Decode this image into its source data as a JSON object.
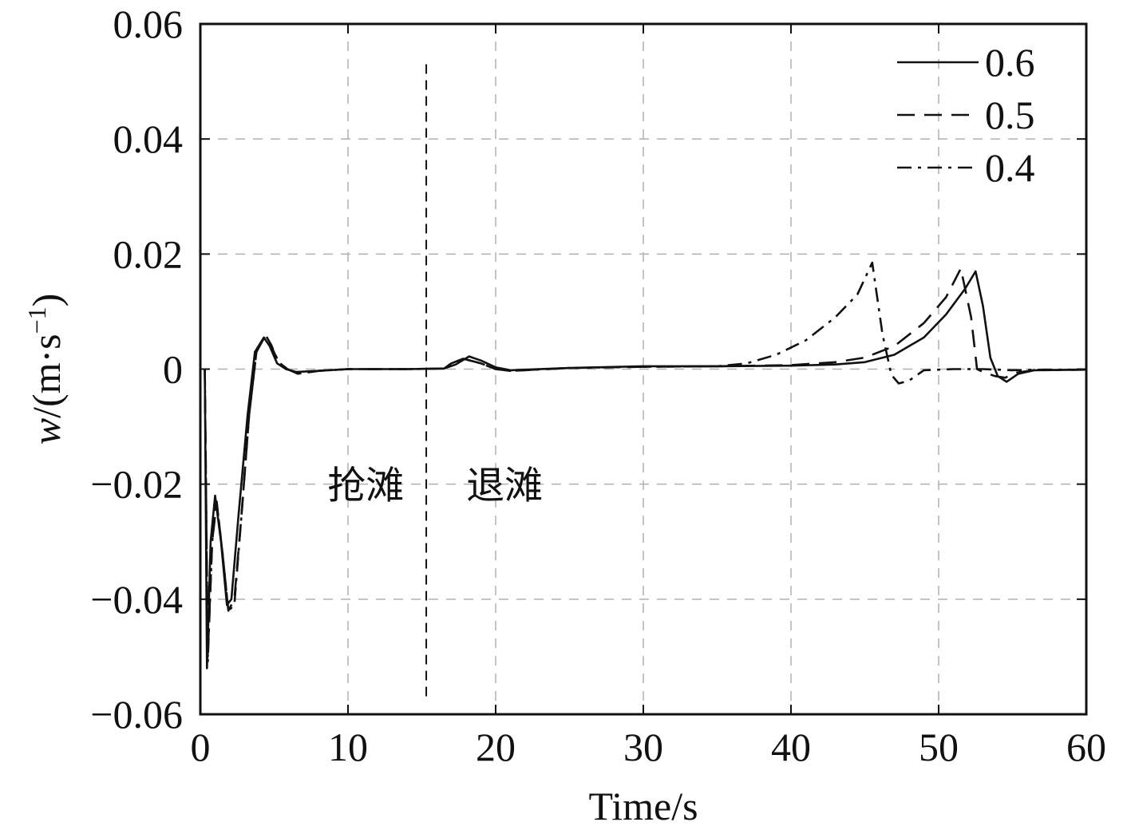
{
  "chart_data": {
    "type": "line",
    "title": "",
    "xlabel": "Time/s",
    "ylabel_var": "w",
    "ylabel_unit": "/(m·s",
    "ylabel_sup": "−1",
    "ylabel_close": ")",
    "xlim": [
      0,
      60
    ],
    "ylim": [
      -0.06,
      0.06
    ],
    "x_ticks": [
      0,
      10,
      20,
      30,
      40,
      50,
      60
    ],
    "x_tick_labels": [
      "0",
      "10",
      "20",
      "30",
      "40",
      "50",
      "60"
    ],
    "y_ticks": [
      -0.06,
      -0.04,
      -0.02,
      0,
      0.02,
      0.04,
      0.06
    ],
    "y_tick_labels": [
      "−0.06",
      "−0.04",
      "−0.02",
      "0",
      "0.02",
      "0.04",
      "0.06"
    ],
    "grid": true,
    "legend_position": "top-right",
    "divider": {
      "x": 15.3
    },
    "annotations": [
      {
        "text": "抢滩",
        "x": 11.2,
        "y": -0.02
      },
      {
        "text": "退滩",
        "x": 20.6,
        "y": -0.02
      }
    ],
    "colors": {
      "line": "#111111",
      "grid": "#b0b0b0",
      "axis": "#111111"
    },
    "series": [
      {
        "name": "0.6",
        "dash": "solid",
        "points": [
          [
            0.3,
            0
          ],
          [
            0.45,
            -0.052
          ],
          [
            0.7,
            -0.03
          ],
          [
            1.0,
            -0.022
          ],
          [
            1.4,
            -0.03
          ],
          [
            1.8,
            -0.041
          ],
          [
            2.1,
            -0.04
          ],
          [
            2.6,
            -0.025
          ],
          [
            3.2,
            -0.008
          ],
          [
            3.7,
            0.003
          ],
          [
            4.3,
            0.0055
          ],
          [
            4.7,
            0.004
          ],
          [
            5.2,
            0.001
          ],
          [
            5.8,
            0.0
          ],
          [
            6.5,
            -0.0005
          ],
          [
            8,
            -0.0003
          ],
          [
            10,
            0
          ],
          [
            14,
            0
          ],
          [
            16.5,
            0.0001
          ],
          [
            17.3,
            0.0008
          ],
          [
            18.2,
            0.0022
          ],
          [
            19,
            0.0015
          ],
          [
            20,
            0.0003
          ],
          [
            21,
            -0.0002
          ],
          [
            25,
            0.0002
          ],
          [
            30,
            0.0005
          ],
          [
            35,
            0.0005
          ],
          [
            40,
            0.0006
          ],
          [
            43,
            0.0008
          ],
          [
            45,
            0.0012
          ],
          [
            47,
            0.0025
          ],
          [
            49,
            0.0055
          ],
          [
            50.5,
            0.0095
          ],
          [
            51.8,
            0.014
          ],
          [
            52.5,
            0.017
          ],
          [
            53.0,
            0.011
          ],
          [
            53.5,
            0.002
          ],
          [
            54.0,
            -0.0012
          ],
          [
            54.6,
            -0.0022
          ],
          [
            55.4,
            -0.0008
          ],
          [
            56.5,
            -0.0002
          ],
          [
            60,
            -0.0001
          ]
        ]
      },
      {
        "name": "0.5",
        "dash": "dashed",
        "points": [
          [
            0.3,
            0
          ],
          [
            0.5,
            -0.05
          ],
          [
            0.8,
            -0.03
          ],
          [
            1.1,
            -0.023
          ],
          [
            1.5,
            -0.032
          ],
          [
            1.9,
            -0.042
          ],
          [
            2.3,
            -0.04
          ],
          [
            2.8,
            -0.025
          ],
          [
            3.3,
            -0.008
          ],
          [
            3.8,
            0.003
          ],
          [
            4.4,
            0.0058
          ],
          [
            4.8,
            0.004
          ],
          [
            5.3,
            0.0012
          ],
          [
            5.9,
            0.0
          ],
          [
            6.6,
            -0.0008
          ],
          [
            8,
            -0.0003
          ],
          [
            10,
            0
          ],
          [
            14,
            0
          ],
          [
            16.5,
            0.0001
          ],
          [
            17.0,
            0.001
          ],
          [
            17.8,
            0.0018
          ],
          [
            19,
            0.001
          ],
          [
            20,
            0.0
          ],
          [
            21,
            -0.0003
          ],
          [
            25,
            0.0002
          ],
          [
            30,
            0.0004
          ],
          [
            35,
            0.0005
          ],
          [
            40,
            0.0007
          ],
          [
            43,
            0.0012
          ],
          [
            45,
            0.002
          ],
          [
            47,
            0.004
          ],
          [
            49,
            0.008
          ],
          [
            50.5,
            0.0125
          ],
          [
            51.5,
            0.0175
          ],
          [
            52.2,
            0.009
          ],
          [
            52.6,
            0.0
          ],
          [
            53.0,
            -0.0005
          ],
          [
            53.8,
            -0.0012
          ],
          [
            54.5,
            -0.0015
          ],
          [
            55.3,
            -0.0006
          ],
          [
            56.5,
            -0.0002
          ],
          [
            60,
            -0.0001
          ]
        ]
      },
      {
        "name": "0.4",
        "dash": "dashdot",
        "points": [
          [
            0.3,
            0
          ],
          [
            0.5,
            -0.051
          ],
          [
            0.8,
            -0.03
          ],
          [
            1.1,
            -0.023
          ],
          [
            1.5,
            -0.032
          ],
          [
            1.9,
            -0.042
          ],
          [
            2.3,
            -0.041
          ],
          [
            2.8,
            -0.025
          ],
          [
            3.3,
            -0.008
          ],
          [
            3.8,
            0.003
          ],
          [
            4.4,
            0.006
          ],
          [
            4.8,
            0.0042
          ],
          [
            5.3,
            0.0012
          ],
          [
            5.9,
            0.0
          ],
          [
            6.6,
            -0.0008
          ],
          [
            8,
            -0.0003
          ],
          [
            10,
            0
          ],
          [
            14,
            0
          ],
          [
            16.5,
            0.0001
          ],
          [
            17.0,
            0.001
          ],
          [
            17.8,
            0.0018
          ],
          [
            19,
            0.001
          ],
          [
            20,
            0.0
          ],
          [
            21,
            -0.0003
          ],
          [
            25,
            0.0002
          ],
          [
            30,
            0.0004
          ],
          [
            35,
            0.0005
          ],
          [
            37,
            0.001
          ],
          [
            39,
            0.0025
          ],
          [
            41,
            0.005
          ],
          [
            43,
            0.009
          ],
          [
            44.5,
            0.013
          ],
          [
            45.5,
            0.0185
          ],
          [
            46.2,
            0.006
          ],
          [
            46.8,
            -0.001
          ],
          [
            47.3,
            -0.0025
          ],
          [
            48,
            -0.002
          ],
          [
            49,
            -0.0002
          ],
          [
            51,
            0.0
          ],
          [
            53,
            0.0
          ],
          [
            55,
            -0.0002
          ],
          [
            57,
            -0.0001
          ],
          [
            60,
            -0.0001
          ]
        ]
      }
    ]
  }
}
